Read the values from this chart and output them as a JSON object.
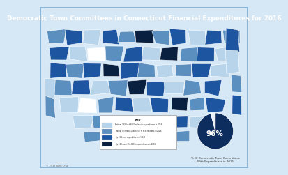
{
  "title": "Democratic Town Committees in Connecticut Financial Expenditures for 2016",
  "background_color": "#d6e8f5",
  "title_bg": "#1a4a82",
  "title_color": "#ffffff",
  "title_fontsize": 6.5,
  "map_bg": "#c5d8ec",
  "map_border": "#7aaad0",
  "pie_values": [
    96,
    4
  ],
  "pie_colors": [
    "#0d2d5e",
    "#e8f0f8"
  ],
  "pie_label": "96%",
  "pie_label_color": "white",
  "pie_subtitle": "% Of Democratic Town Committees\nWith Expenditures in 2016",
  "legend_title": "Key",
  "legend_items": [
    {
      "label": "Bottom 25% had $600 or less in expenditures in 2016",
      "color": "#b8d4ea"
    },
    {
      "label": "Middle 50% had $600 to $8,000 in expenditures in 2016",
      "color": "#5b8fc0"
    },
    {
      "label": "Top 25% had expenditures of $8 K +",
      "color": "#1e55a0"
    },
    {
      "label": "Top 10% over $19,000 in expenditures in 2016",
      "color": "#0a2040"
    }
  ],
  "footer": "© 2017 John Cruz",
  "town_colors": [
    "#5b8fc0",
    "#1e55a0",
    "#b8d4ea",
    "#1e55a0",
    "#5b8fc0",
    "#0a2040",
    "#5b8fc0",
    "#1e55a0",
    "#b8d4ea",
    "#1e55a0",
    "#5b8fc0",
    "#1e55a0",
    "#b8d4ea",
    "#ffffff",
    "#5b8fc0",
    "#1e55a0",
    "#b8d4ea",
    "#0a2040",
    "#5b8fc0",
    "#1e55a0",
    "#b8d4ea",
    "#1e55a0",
    "#5b8fc0",
    "#1e55a0",
    "#0a2040",
    "#1e55a0",
    "#5b8fc0",
    "#b8d4ea",
    "#5b8fc0",
    "#1e55a0",
    "#b8d4ea",
    "#5b8fc0",
    "#1e55a0",
    "#b8d4ea",
    "#5b8fc0",
    "#0a2040",
    "#1e55a0",
    "#b8d4ea",
    "#5b8fc0",
    "#1e55a0",
    "#b8d4ea",
    "#ffffff",
    "#5b8fc0",
    "#1e55a0",
    "#b8d4ea",
    "#1e55a0",
    "#0a2040",
    "#5b8fc0",
    "#1e55a0",
    "#b8d4ea",
    "#5b8fc0",
    "#1e55a0",
    "#b8d4ea",
    "#5b8fc0",
    "#1e55a0",
    "#b8d4ea",
    "#5b8fc0",
    "#0a2040",
    "#1e55a0",
    "#b8d4ea",
    "#5b8fc0",
    "#1e55a0",
    "#b8d4ea",
    "#5b8fc0",
    "#1e55a0",
    "#b8d4ea",
    "#5b8fc0",
    "#0a2040",
    "#1e55a0",
    "#b8d4ea",
    "#5b8fc0",
    "#ffffff",
    "#1e55a0",
    "#b8d4ea",
    "#5b8fc0",
    "#1e55a0",
    "#b8d4ea",
    "#5b8fc0",
    "#1e55a0",
    "#0a2040",
    "#b8d4ea",
    "#5b8fc0",
    "#1e55a0",
    "#b8d4ea",
    "#5b8fc0",
    "#1e55a0",
    "#b8d4ea",
    "#5b8fc0",
    "#1e55a0",
    "#b8d4ea",
    "#0a2040",
    "#1e55a0",
    "#b8d4ea",
    "#5b8fc0",
    "#1e55a0",
    "#b8d4ea",
    "#5b8fc0",
    "#1e55a0",
    "#0a2040",
    "#b8d4ea",
    "#5b8fc0",
    "#1e55a0",
    "#b8d4ea",
    "#5b8fc0",
    "#1e55a0",
    "#b8d4ea",
    "#5b8fc0",
    "#0a2040",
    "#1e55a0",
    "#b8d4ea",
    "#5b8fc0",
    "#1e55a0",
    "#b8d4ea",
    "#5b8fc0",
    "#0a2040",
    "#1e55a0",
    "#b8d4ea",
    "#5b8fc0",
    "#1e55a0",
    "#b8d4ea",
    "#5b8fc0",
    "#1e55a0",
    "#b8d4ea",
    "#5b8fc0",
    "#0a2040",
    "#1e55a0",
    "#b8d4ea",
    "#5b8fc0",
    "#1e55a0",
    "#b8d4ea",
    "#5b8fc0",
    "#1e55a0",
    "#0a2040",
    "#b8d4ea",
    "#5b8fc0",
    "#1e55a0",
    "#b8d4ea",
    "#5b8fc0",
    "#1e55a0",
    "#b8d4ea",
    "#5b8fc0",
    "#0a2040",
    "#1e55a0",
    "#b8d4ea",
    "#5b8fc0",
    "#1e55a0",
    "#b8d4ea",
    "#5b8fc0",
    "#1e55a0",
    "#b8d4ea",
    "#5b8fc0",
    "#0a2040",
    "#1e55a0",
    "#b8d4ea",
    "#5b8fc0",
    "#1e55a0",
    "#b8d4ea",
    "#5b8fc0",
    "#1e55a0",
    "#b8d4ea",
    "#5b8fc0",
    "#1e55a0",
    "#0a2040",
    "#b8d4ea"
  ]
}
